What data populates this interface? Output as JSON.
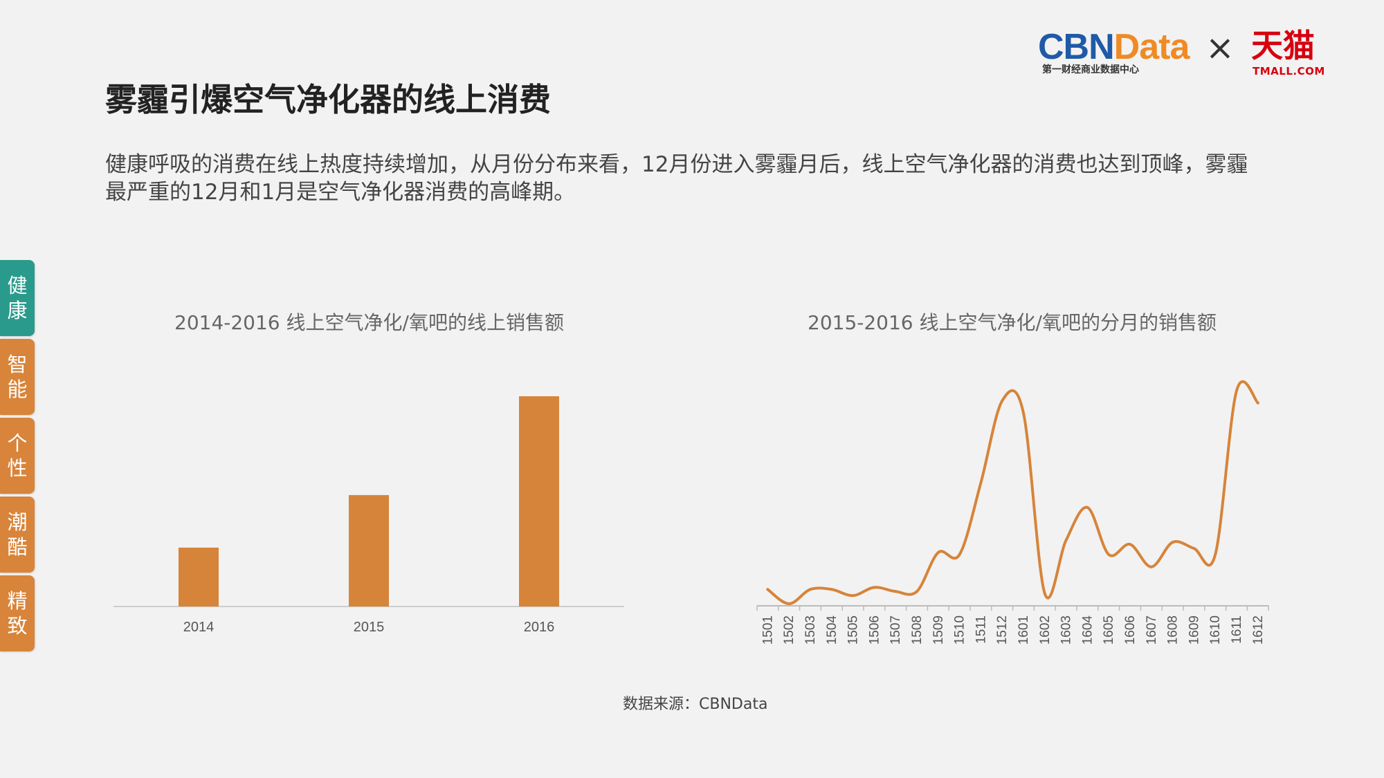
{
  "logo": {
    "cbn_part1": "CBN",
    "cbn_part2": "Data",
    "cbn_sub": "第一财经商业数据中心",
    "times": "×",
    "tmall": "天猫",
    "tmall_sub": "TMALL.COM"
  },
  "title": "雾霾引爆空气净化器的线上消费",
  "description": "健康呼吸的消费在线上热度持续增加，从月份分布来看，12月份进入雾霾月后，线上空气净化器的消费也达到顶峰，雾霾最严重的12月和1月是空气净化器消费的高峰期。",
  "side_tabs": [
    {
      "label": "健康",
      "active": true
    },
    {
      "label": "智能",
      "active": false
    },
    {
      "label": "个性",
      "active": false
    },
    {
      "label": "潮酷",
      "active": false
    },
    {
      "label": "精致",
      "active": false
    }
  ],
  "colors": {
    "bar": "#d6843a",
    "line": "#d6843a",
    "tab_active": "#2a9a8c",
    "tab": "#d8843a"
  },
  "chart_data": [
    {
      "type": "bar",
      "title": "2014-2016  线上空气净化/氧吧的线上销售额",
      "categories": [
        "2014",
        "2015",
        "2016"
      ],
      "values": [
        28,
        53,
        100
      ],
      "ylim": [
        0,
        100
      ],
      "xlabel": "",
      "ylabel": "",
      "grid": false
    },
    {
      "type": "line",
      "title": "2015-2016  线上空气净化/氧吧的分月的销售额",
      "x": [
        "1501",
        "1502",
        "1503",
        "1504",
        "1505",
        "1506",
        "1507",
        "1508",
        "1509",
        "1510",
        "1511",
        "1512",
        "1601",
        "1602",
        "1603",
        "1604",
        "1605",
        "1606",
        "1607",
        "1608",
        "1609",
        "1610",
        "1611",
        "1612"
      ],
      "values": [
        8,
        1,
        8,
        8,
        5,
        9,
        7,
        7,
        26,
        25,
        60,
        100,
        94,
        6,
        32,
        48,
        25,
        30,
        19,
        31,
        28,
        25,
        105,
        99
      ],
      "ylim": [
        0,
        110
      ],
      "xlabel": "",
      "ylabel": "",
      "grid": false
    }
  ],
  "source": "数据来源：CBNData"
}
